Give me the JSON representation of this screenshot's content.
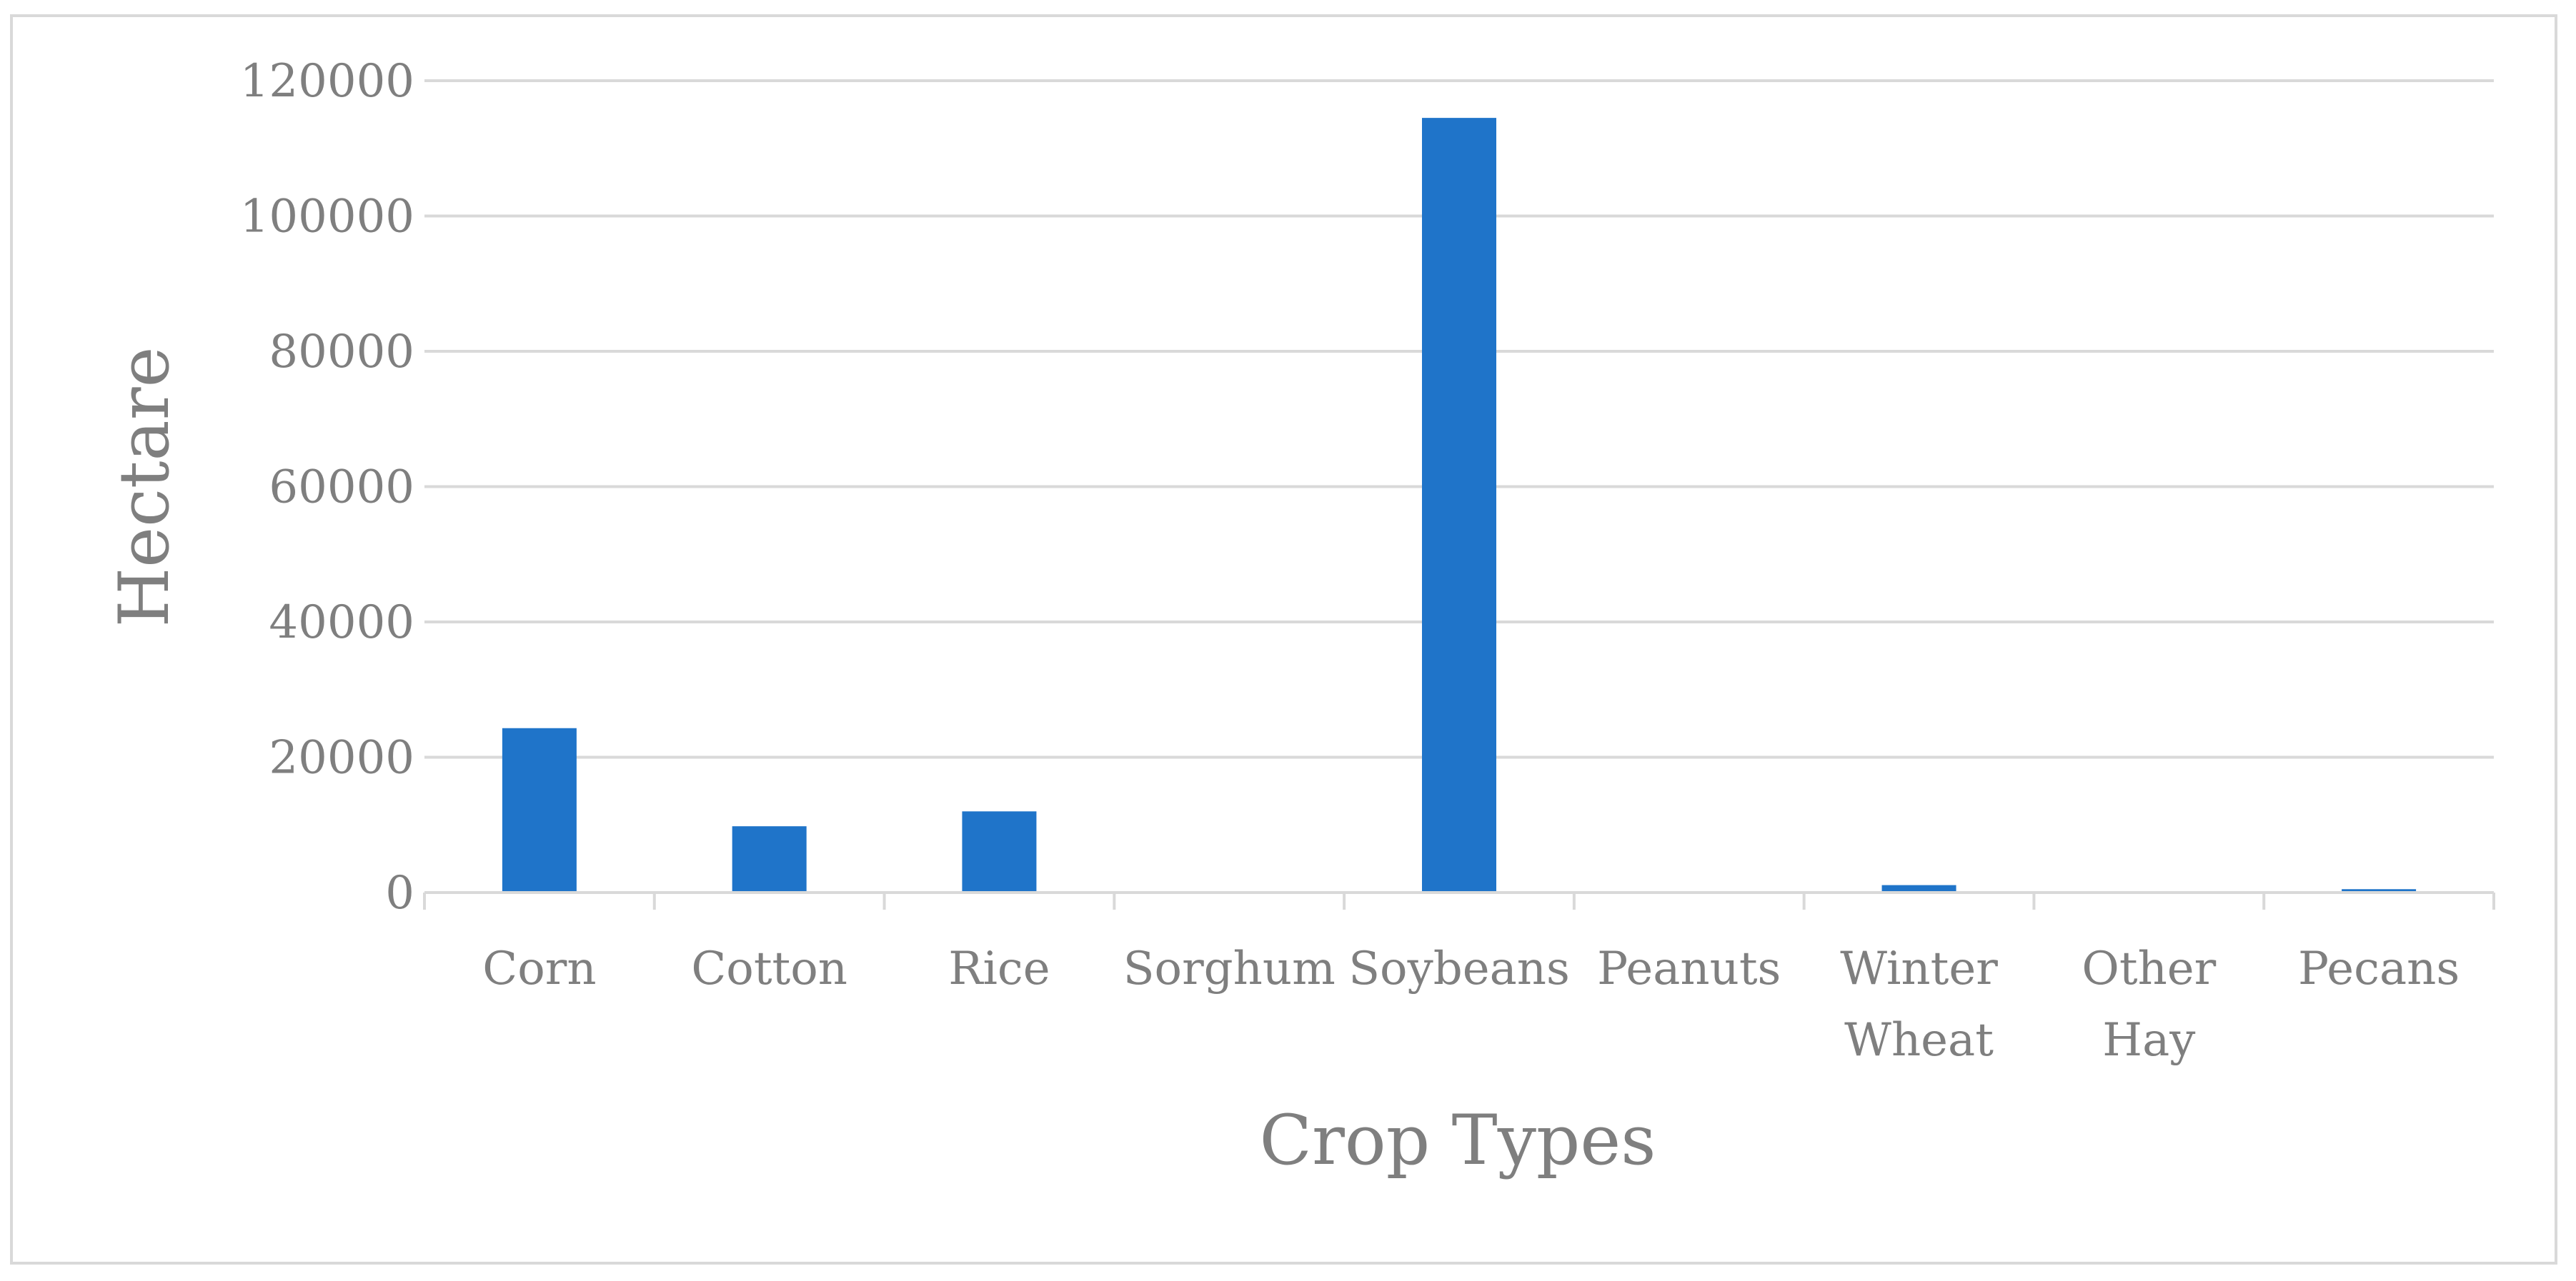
{
  "chart_data": {
    "type": "bar",
    "title": "",
    "xlabel": "Crop Types",
    "ylabel": "Hectare",
    "categories": [
      [
        "Corn"
      ],
      [
        "Cotton"
      ],
      [
        "Rice"
      ],
      [
        "Sorghum"
      ],
      [
        "Soybeans"
      ],
      [
        "Peanuts"
      ],
      [
        "Winter",
        "Wheat"
      ],
      [
        "Other",
        "Hay"
      ],
      [
        "Pecans"
      ]
    ],
    "values": [
      24300,
      9800,
      12000,
      0,
      114500,
      0,
      1100,
      0,
      500
    ],
    "ylim": [
      0,
      120000
    ],
    "yticks": [
      0,
      20000,
      40000,
      60000,
      80000,
      100000,
      120000
    ],
    "grid": true,
    "legend": "none",
    "bar_color": "#1f74c9",
    "grid_color": "#d9d9d9",
    "text_color": "#7f7f7f"
  }
}
